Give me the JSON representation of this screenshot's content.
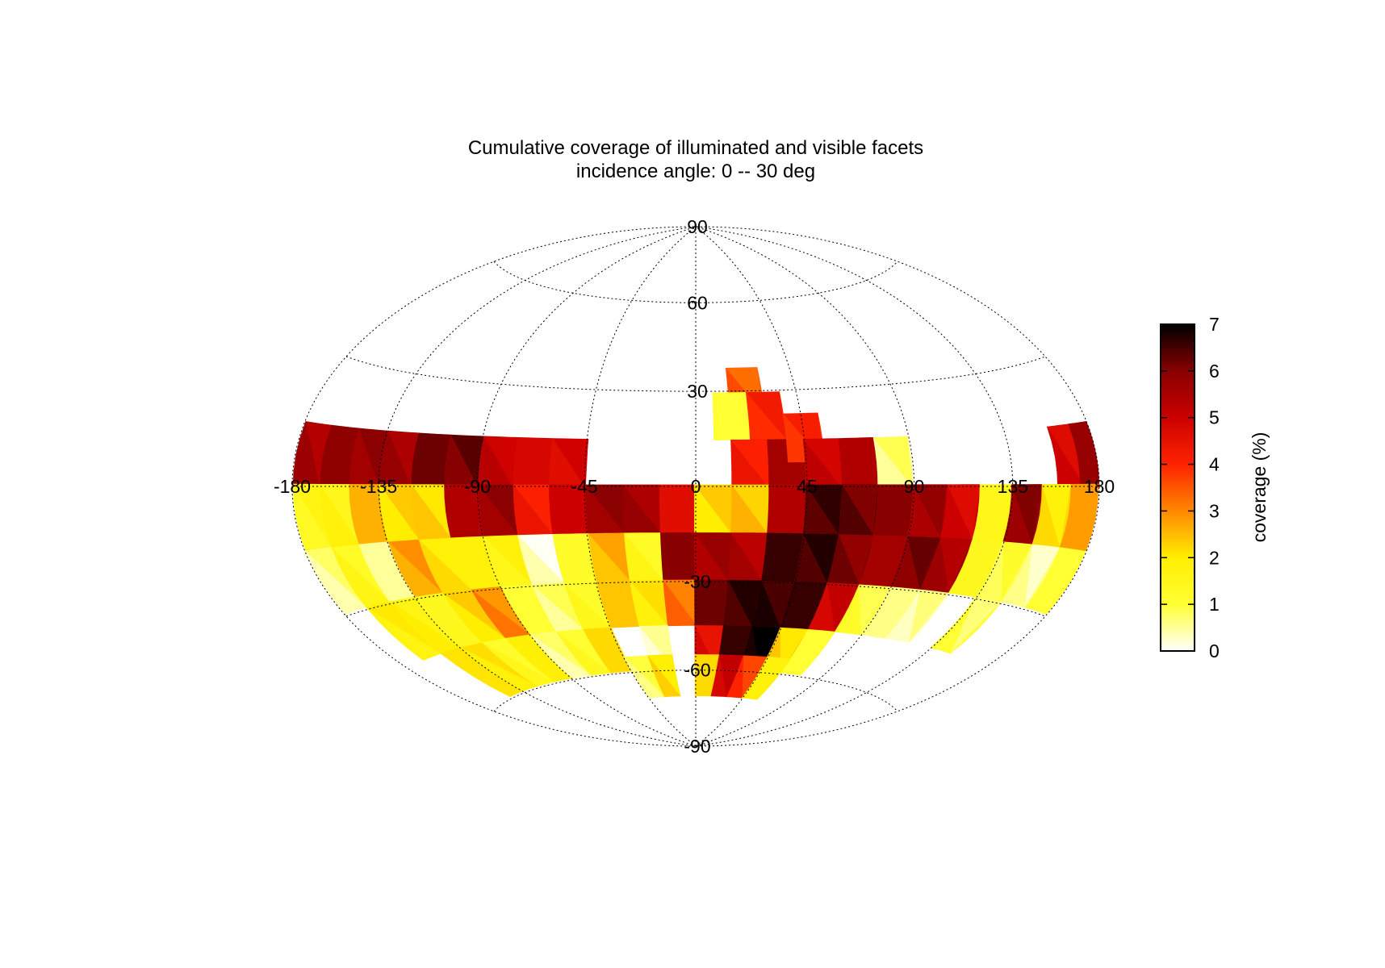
{
  "chart_data": {
    "type": "heatmap",
    "projection": "hammer-aitoff",
    "title": "Cumulative coverage of illuminated and visible facets",
    "subtitle": "incidence angle:  0 -- 30 deg",
    "lon_ticks": [
      "-180",
      "-135",
      "-90",
      "-45",
      "0",
      "45",
      "90",
      "135",
      "180"
    ],
    "lat_ticks": [
      "90",
      "60",
      "30",
      "-30",
      "-60",
      "-90"
    ],
    "lon_range": [
      -180,
      180
    ],
    "lat_range": [
      -90,
      90
    ],
    "grid": true,
    "colorbar": {
      "label": "coverage (%)",
      "min": 0,
      "max": 7,
      "ticks": [
        "0",
        "1",
        "2",
        "3",
        "4",
        "5",
        "6",
        "7"
      ],
      "colormap": "hot (reversed)",
      "stops": [
        "#ffffff",
        "#ffff33",
        "#ffee00",
        "#ff8800",
        "#ff2200",
        "#cc0000",
        "#880000",
        "#000000"
      ]
    },
    "cell_size_deg": 15,
    "cells": [
      {
        "lon": -172,
        "lat": 7,
        "v": 5.7
      },
      {
        "lon": -157,
        "lat": 7,
        "v": 5.9
      },
      {
        "lon": -142,
        "lat": 7,
        "v": 5.6
      },
      {
        "lon": -127,
        "lat": 7,
        "v": 5.8
      },
      {
        "lon": -112,
        "lat": 7,
        "v": 6.2
      },
      {
        "lon": -97,
        "lat": 7,
        "v": 6.0
      },
      {
        "lon": -82,
        "lat": 7,
        "v": 5.3
      },
      {
        "lon": -67,
        "lat": 7,
        "v": 4.8
      },
      {
        "lon": -52,
        "lat": 7,
        "v": 4.6
      },
      {
        "lon": 22,
        "lat": 30,
        "v": 3.6
      },
      {
        "lon": 15,
        "lat": 22,
        "v": 1.0
      },
      {
        "lon": 30,
        "lat": 22,
        "v": 3.9
      },
      {
        "lon": 22,
        "lat": 7,
        "v": 4.4
      },
      {
        "lon": 37,
        "lat": 7,
        "v": 5.6
      },
      {
        "lon": 45,
        "lat": 15,
        "v": 3.8
      },
      {
        "lon": 52,
        "lat": 7,
        "v": 5.2
      },
      {
        "lon": 67,
        "lat": 7,
        "v": 5.4
      },
      {
        "lon": 82,
        "lat": 7,
        "v": 0.5
      },
      {
        "lon": 165,
        "lat": 7,
        "v": 5.0
      },
      {
        "lon": 177,
        "lat": 7,
        "v": 5.8
      },
      {
        "lon": -172,
        "lat": -7,
        "v": 1.3
      },
      {
        "lon": -157,
        "lat": -7,
        "v": 1.8
      },
      {
        "lon": -142,
        "lat": -7,
        "v": 2.6
      },
      {
        "lon": -127,
        "lat": -7,
        "v": 2.0
      },
      {
        "lon": -112,
        "lat": -7,
        "v": 2.4
      },
      {
        "lon": -97,
        "lat": -7,
        "v": 5.4
      },
      {
        "lon": -82,
        "lat": -7,
        "v": 5.6
      },
      {
        "lon": -67,
        "lat": -7,
        "v": 4.4
      },
      {
        "lon": -52,
        "lat": -7,
        "v": 5.0
      },
      {
        "lon": -37,
        "lat": -7,
        "v": 5.6
      },
      {
        "lon": -22,
        "lat": -7,
        "v": 5.8
      },
      {
        "lon": -7,
        "lat": -7,
        "v": 4.6
      },
      {
        "lon": 7,
        "lat": -7,
        "v": 2.0
      },
      {
        "lon": 22,
        "lat": -7,
        "v": 2.6
      },
      {
        "lon": 37,
        "lat": -7,
        "v": 5.4
      },
      {
        "lon": 52,
        "lat": -7,
        "v": 6.3
      },
      {
        "lon": 67,
        "lat": -7,
        "v": 6.4
      },
      {
        "lon": 82,
        "lat": -7,
        "v": 6.0
      },
      {
        "lon": 97,
        "lat": -7,
        "v": 5.5
      },
      {
        "lon": 112,
        "lat": -7,
        "v": 5.0
      },
      {
        "lon": 127,
        "lat": -7,
        "v": 1.5
      },
      {
        "lon": 142,
        "lat": -7,
        "v": 5.7
      },
      {
        "lon": 157,
        "lat": -7,
        "v": 2.2
      },
      {
        "lon": 172,
        "lat": -7,
        "v": 2.8
      },
      {
        "lon": -172,
        "lat": -22,
        "v": 0.4
      },
      {
        "lon": -157,
        "lat": -22,
        "v": 1.6
      },
      {
        "lon": -142,
        "lat": -22,
        "v": 0.5
      },
      {
        "lon": -127,
        "lat": -22,
        "v": 2.6
      },
      {
        "lon": -112,
        "lat": -22,
        "v": 2.2
      },
      {
        "lon": -97,
        "lat": -22,
        "v": 1.8
      },
      {
        "lon": -82,
        "lat": -22,
        "v": 1.5
      },
      {
        "lon": -67,
        "lat": -22,
        "v": 0.4
      },
      {
        "lon": -52,
        "lat": -22,
        "v": 1.2
      },
      {
        "lon": -37,
        "lat": -22,
        "v": 2.4
      },
      {
        "lon": -22,
        "lat": -22,
        "v": 1.6
      },
      {
        "lon": -7,
        "lat": -22,
        "v": 6.0
      },
      {
        "lon": 7,
        "lat": -22,
        "v": 5.4
      },
      {
        "lon": 22,
        "lat": -22,
        "v": 5.6
      },
      {
        "lon": 37,
        "lat": -22,
        "v": 6.6
      },
      {
        "lon": 52,
        "lat": -22,
        "v": 6.4
      },
      {
        "lon": 67,
        "lat": -22,
        "v": 6.2
      },
      {
        "lon": 82,
        "lat": -22,
        "v": 5.6
      },
      {
        "lon": 97,
        "lat": -22,
        "v": 5.9
      },
      {
        "lon": 112,
        "lat": -22,
        "v": 5.7
      },
      {
        "lon": 127,
        "lat": -22,
        "v": 1.4
      },
      {
        "lon": 142,
        "lat": -22,
        "v": 0.8
      },
      {
        "lon": 157,
        "lat": -22,
        "v": 0.6
      },
      {
        "lon": 172,
        "lat": -22,
        "v": 1.0
      },
      {
        "lon": -157,
        "lat": -37,
        "v": 1.7
      },
      {
        "lon": -142,
        "lat": -37,
        "v": 2.0
      },
      {
        "lon": -127,
        "lat": -37,
        "v": 1.4
      },
      {
        "lon": -112,
        "lat": -37,
        "v": 2.0
      },
      {
        "lon": -97,
        "lat": -37,
        "v": 3.2
      },
      {
        "lon": -82,
        "lat": -37,
        "v": 1.0
      },
      {
        "lon": -67,
        "lat": -37,
        "v": 0.5
      },
      {
        "lon": -52,
        "lat": -37,
        "v": 1.5
      },
      {
        "lon": -37,
        "lat": -37,
        "v": 2.4
      },
      {
        "lon": -22,
        "lat": -37,
        "v": 1.8
      },
      {
        "lon": -7,
        "lat": -37,
        "v": 3.4
      },
      {
        "lon": 7,
        "lat": -37,
        "v": 6.2
      },
      {
        "lon": 22,
        "lat": -37,
        "v": 6.4
      },
      {
        "lon": 37,
        "lat": -37,
        "v": 6.8
      },
      {
        "lon": 52,
        "lat": -37,
        "v": 6.6
      },
      {
        "lon": 67,
        "lat": -37,
        "v": 4.8
      },
      {
        "lon": 82,
        "lat": -37,
        "v": 1.2
      },
      {
        "lon": 97,
        "lat": -37,
        "v": 0.6
      },
      {
        "lon": 112,
        "lat": -37,
        "v": 0.3
      },
      {
        "lon": 142,
        "lat": -37,
        "v": 1.0
      },
      {
        "lon": -142,
        "lat": -52,
        "v": 2.1
      },
      {
        "lon": -127,
        "lat": -52,
        "v": 1.8
      },
      {
        "lon": -112,
        "lat": -52,
        "v": 1.5
      },
      {
        "lon": -97,
        "lat": -52,
        "v": 1.9
      },
      {
        "lon": -82,
        "lat": -52,
        "v": 0.4
      },
      {
        "lon": -67,
        "lat": -52,
        "v": 1.4
      },
      {
        "lon": -52,
        "lat": -52,
        "v": 2.2
      },
      {
        "lon": -22,
        "lat": -52,
        "v": 0.2
      },
      {
        "lon": 7,
        "lat": -52,
        "v": 4.8
      },
      {
        "lon": 22,
        "lat": -52,
        "v": 6.6
      },
      {
        "lon": 37,
        "lat": -52,
        "v": 6.8
      },
      {
        "lon": 52,
        "lat": -52,
        "v": 2.4
      },
      {
        "lon": 67,
        "lat": -52,
        "v": 1.0
      },
      {
        "lon": -37,
        "lat": -62,
        "v": 0.6
      },
      {
        "lon": -22,
        "lat": -62,
        "v": 2.3
      },
      {
        "lon": 7,
        "lat": -62,
        "v": 2.2
      },
      {
        "lon": 22,
        "lat": -62,
        "v": 4.8
      },
      {
        "lon": 37,
        "lat": -62,
        "v": 4.0
      },
      {
        "lon": 52,
        "lat": -62,
        "v": 1.8
      }
    ]
  }
}
